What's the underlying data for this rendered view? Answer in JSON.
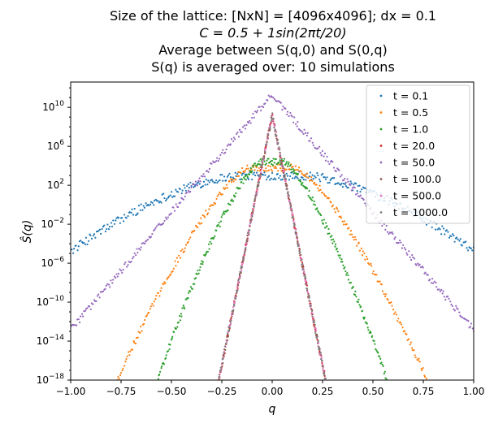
{
  "chart_data": {
    "type": "scatter",
    "title_lines": [
      "Size of the lattice: [NxN] = [4096x4096]; dx = 0.1",
      "C = 0.5 + 1sin(2πt/20)",
      "Average between S(q,0) and S(0,q)",
      "S(q) is averaged over: 10 simulations"
    ],
    "xlabel": "q",
    "ylabel": "Ŝ(q)",
    "xlim": [
      -1.0,
      1.0
    ],
    "ylim_log10": [
      -18,
      12.6
    ],
    "yscale": "log",
    "grid": false,
    "legend_position": "top-right",
    "x_ticks": [
      {
        "value": -1.0,
        "label": "−1.00"
      },
      {
        "value": -0.75,
        "label": "−0.75"
      },
      {
        "value": -0.5,
        "label": "−0.50"
      },
      {
        "value": -0.25,
        "label": "−0.25"
      },
      {
        "value": 0.0,
        "label": "0.00"
      },
      {
        "value": 0.25,
        "label": "0.25"
      },
      {
        "value": 0.5,
        "label": "0.50"
      },
      {
        "value": 0.75,
        "label": "0.75"
      },
      {
        "value": 1.0,
        "label": "1.00"
      }
    ],
    "y_ticks": [
      {
        "exp": 10,
        "base": "10",
        "sup": "10"
      },
      {
        "exp": 6,
        "base": "10",
        "sup": "6"
      },
      {
        "exp": 2,
        "base": "10",
        "sup": "2"
      },
      {
        "exp": -2,
        "base": "10",
        "sup": "−2"
      },
      {
        "exp": -6,
        "base": "10",
        "sup": "−6"
      },
      {
        "exp": -10,
        "base": "10",
        "sup": "−10"
      },
      {
        "exp": -14,
        "base": "10",
        "sup": "−14"
      },
      {
        "exp": -18,
        "base": "10",
        "sup": "−18"
      }
    ],
    "series": [
      {
        "name": "t = 0.1",
        "color": "#1f77b4",
        "log10_peak": 3.2,
        "log10_center": 3.0,
        "log10_edge": -4.8,
        "q_range": [
          -1.0,
          1.0
        ]
      },
      {
        "name": "t = 0.5",
        "color": "#ff7f0e",
        "log10_peak": 3.8,
        "log10_center": 3.8,
        "log10_edge": -18.0,
        "q_range": [
          -0.77,
          0.77
        ]
      },
      {
        "name": "t = 1.0",
        "color": "#2ca02c",
        "log10_peak": 4.4,
        "log10_center": 4.4,
        "log10_edge": -18.0,
        "q_range": [
          -0.57,
          0.57
        ]
      },
      {
        "name": "t = 20.0",
        "color": "#d62728",
        "log10_peak": 9.2,
        "log10_center": 9.2,
        "log10_edge": -18.0,
        "q_range": [
          -0.265,
          0.265
        ]
      },
      {
        "name": "t = 50.0",
        "color": "#9467bd",
        "log10_peak": 11.3,
        "log10_center": 11.3,
        "log10_edge": -12.8,
        "q_range": [
          -1.0,
          1.0
        ]
      },
      {
        "name": "t = 100.0",
        "color": "#8c564b",
        "log10_peak": 9.2,
        "log10_center": 9.2,
        "log10_edge": -18.0,
        "q_range": [
          -0.265,
          0.265
        ]
      },
      {
        "name": "t = 500.0",
        "color": "#e377c2",
        "log10_peak": 9.2,
        "log10_center": 9.2,
        "log10_edge": -18.0,
        "q_range": [
          -0.265,
          0.265
        ]
      },
      {
        "name": "t = 1000.0",
        "color": "#7f7f7f",
        "log10_peak": 9.2,
        "log10_center": 9.2,
        "log10_edge": -18.0,
        "q_range": [
          -0.265,
          0.265
        ]
      }
    ]
  }
}
